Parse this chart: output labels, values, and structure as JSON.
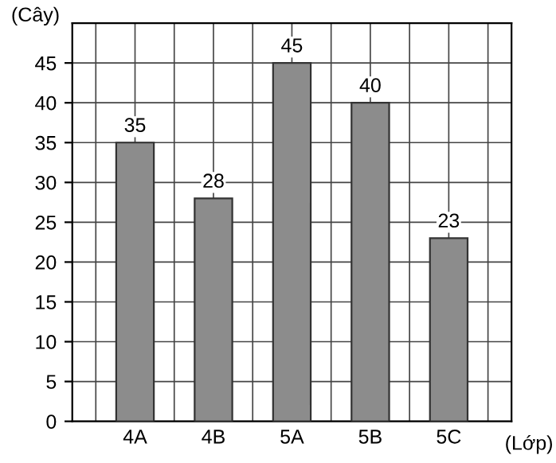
{
  "chart_data": {
    "type": "bar",
    "ylabel": "(Cây)",
    "xlabel": "(Lớp)",
    "categories": [
      "4A",
      "4B",
      "5A",
      "5B",
      "5C"
    ],
    "values": [
      35,
      28,
      45,
      40,
      23
    ],
    "color": "#8c8c8c",
    "data_labels": true,
    "ylim": [
      0,
      50
    ],
    "yticks": [
      0,
      5,
      10,
      15,
      20,
      25,
      30,
      35,
      40,
      45
    ],
    "grid": true
  }
}
